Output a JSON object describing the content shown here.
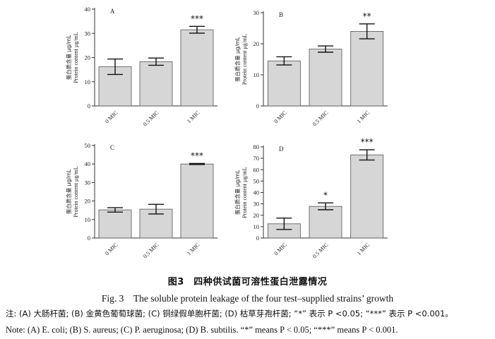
{
  "chart_data": [
    {
      "type": "bar",
      "panel_label": "A",
      "categories": [
        "0 MIC",
        "0.5 MIC",
        "1 MIC"
      ],
      "values": [
        16.2,
        18.3,
        31.5
      ],
      "errors": [
        3.2,
        1.5,
        1.4
      ],
      "significance": [
        "",
        "",
        "***"
      ],
      "ylabel_cn": "蛋白质含量 μg/mL",
      "ylabel": "Protein content μg/mL",
      "ylim": [
        0,
        40
      ],
      "yticks": [
        0,
        10,
        20,
        30,
        40
      ]
    },
    {
      "type": "bar",
      "panel_label": "B",
      "categories": [
        "0 MIC",
        "0.5 MIC",
        "1 MIC"
      ],
      "values": [
        14.5,
        18.3,
        24.0
      ],
      "errors": [
        1.3,
        1.0,
        2.4
      ],
      "significance": [
        "",
        "",
        "**"
      ],
      "ylabel_cn": "蛋白质含量 μg/mL",
      "ylabel": "Protein content μg/mL",
      "ylim": [
        0,
        30
      ],
      "yticks": [
        0,
        10,
        20,
        30
      ]
    },
    {
      "type": "bar",
      "panel_label": "C",
      "categories": [
        "0 MIC",
        "0.5 MIC",
        "1 MIC"
      ],
      "values": [
        15.2,
        15.6,
        40.0
      ],
      "errors": [
        1.2,
        2.6,
        0.3
      ],
      "significance": [
        "",
        "",
        "***"
      ],
      "ylabel_cn": "蛋白质含量 μg/mL",
      "ylabel": "Protein content μg/mL",
      "ylim": [
        0,
        50
      ],
      "yticks": [
        0,
        10,
        20,
        30,
        40,
        50
      ]
    },
    {
      "type": "bar",
      "panel_label": "D",
      "categories": [
        "0 MIC",
        "0.5 MIC",
        "1 MIC"
      ],
      "values": [
        12.5,
        27.8,
        73.0
      ],
      "errors": [
        5.0,
        3.0,
        4.5
      ],
      "significance": [
        "",
        "*",
        "***"
      ],
      "ylabel_cn": "蛋白质含量 μg/mL",
      "ylabel": "Protein content μg/mL",
      "ylim": [
        0,
        80
      ],
      "yticks": [
        0,
        10,
        20,
        30,
        40,
        50,
        60,
        70,
        80
      ]
    }
  ],
  "caption": {
    "cn": "图3　四种供试菌可溶性蛋白泄露情况",
    "en": "Fig. 3　The soluble protein leakage of the four test–supplied strains’ growth"
  },
  "notes": {
    "cn": "注: (A) 大肠杆菌; (B) 金黄色葡萄球菌; (C) 铜绿假单胞杆菌; (D) 枯草芽孢杆菌; “*” 表示 P <0.05; “***” 表示 P <0.001。",
    "en": "Note: (A) E. coli; (B) S. aureus; (C) P. aeruginosa; (D) B. subtilis. “*” means P < 0.05; “***” means P < 0.001."
  }
}
